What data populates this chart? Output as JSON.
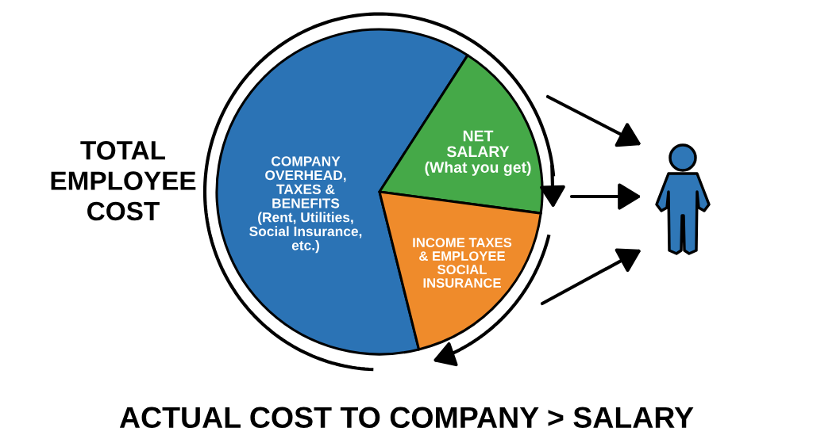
{
  "chart_data": {
    "type": "pie",
    "categories": [
      "COMPANY\nOVERHEAD,\nTAXES &\nBENEFITS\n(Rent, Utilities,\nSocial Insurance,\netc.)",
      "NET\nSALARY\n(What you get)",
      "INCOME TAXES\n& EMPLOYEE\nSOCIAL\nINSURANCE"
    ],
    "values": [
      63,
      18,
      19
    ],
    "colors": [
      "#2b73b5",
      "#45a948",
      "#ef8b2b"
    ],
    "annotations": [
      "TOTAL\nEMPLOYEE\nCOST",
      "ACTUAL COST TO COMPANY > SALARY"
    ]
  }
}
